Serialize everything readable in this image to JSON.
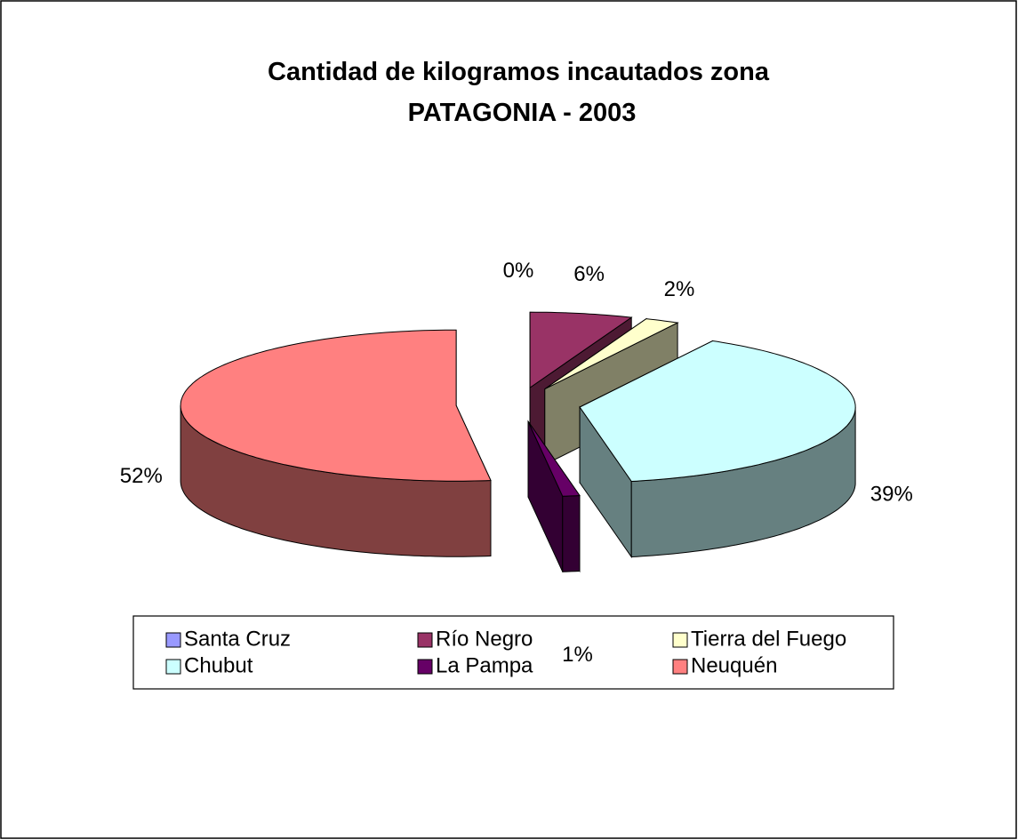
{
  "chart_data": {
    "type": "pie3d",
    "title": "Cantidad de kilogramos incautados zona PATAGONIA - 2003",
    "categories": [
      "Santa Cruz",
      "Río Negro",
      "Tierra del Fuego",
      "Chubut",
      "La Pampa",
      "Neuquén"
    ],
    "values": [
      0,
      6,
      2,
      39,
      1,
      52
    ],
    "value_labels": [
      "0%",
      "6%",
      "2%",
      "39%",
      "1%",
      "52%"
    ],
    "colors": [
      "#9999ff",
      "#993366",
      "#ffffcc",
      "#ccffff",
      "#660066",
      "#ff8080"
    ],
    "legend": "bottom"
  }
}
